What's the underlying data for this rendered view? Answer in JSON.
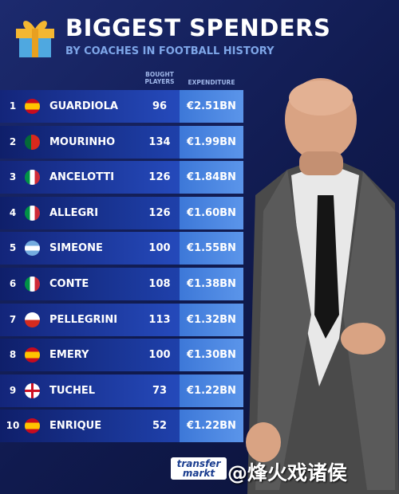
{
  "header": {
    "title": "BIGGEST SPENDERS",
    "subtitle": "BY COACHES IN FOOTBALL HISTORY"
  },
  "table": {
    "columns": [
      "BOUGHT PLAYERS",
      "EXPENDITURE"
    ],
    "rows": [
      [
        1,
        "GUARDIOLA",
        96,
        "€2.51BN"
      ],
      [
        2,
        "MOURINHO",
        134,
        "€1.99BN"
      ],
      [
        3,
        "ANCELOTTI",
        126,
        "€1.84BN"
      ],
      [
        4,
        "ALLEGRI",
        126,
        "€1.60BN"
      ],
      [
        5,
        "SIMEONE",
        100,
        "€1.55BN"
      ],
      [
        6,
        "CONTE",
        108,
        "€1.38BN"
      ],
      [
        7,
        "PELLEGRINI",
        113,
        "€1.32BN"
      ],
      [
        8,
        "EMERY",
        100,
        "€1.30BN"
      ],
      [
        9,
        "TUCHEL",
        73,
        "€1.22BN"
      ],
      [
        10,
        "ENRIQUE",
        52,
        "€1.22BN"
      ]
    ]
  },
  "footer": {
    "logo": [
      "transfer",
      "markt"
    ],
    "watermark": "@烽火戏诸侯"
  }
}
